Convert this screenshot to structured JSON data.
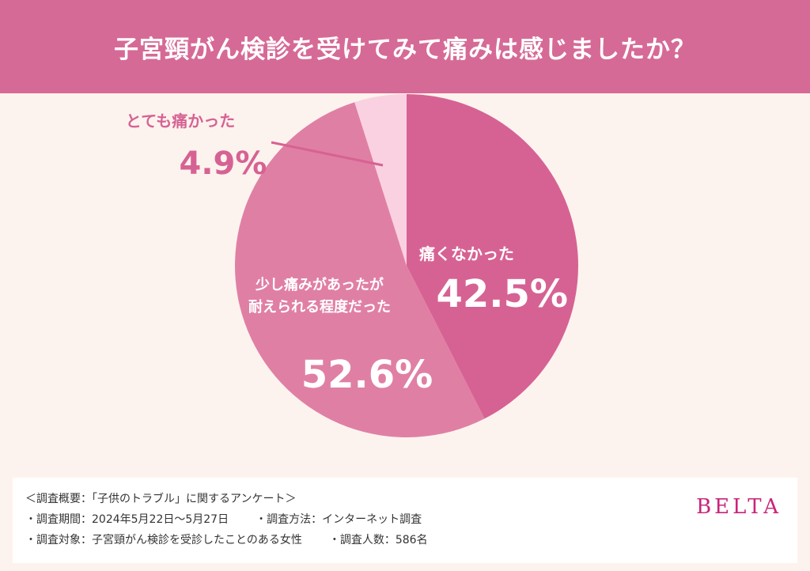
{
  "title": "子宮頸がん検診を受けてみて痛みは感じましたか？",
  "chart_data": {
    "type": "pie",
    "start_angle": 0,
    "direction": "clockwise",
    "slices": [
      {
        "lines": [
          "痛くなかった"
        ],
        "value": 42.5,
        "value_label": "42.5%",
        "color": "#d66293"
      },
      {
        "lines": [
          "少し痛みがあったが",
          "耐えられる程度だった"
        ],
        "value": 52.6,
        "value_label": "52.6%",
        "color": "#e07fa4"
      },
      {
        "lines": [
          "とても痛かった"
        ],
        "value": 4.9,
        "value_label": "4.9%",
        "color": "#fad1e1"
      }
    ]
  },
  "survey": {
    "heading": "＜調査概要：「子供のトラブル」に関するアンケート＞",
    "period": "・調査期間：2024年5月22日〜5月27日",
    "method": "・調査方法：インターネット調査",
    "target": "・調査対象：子宮頸がん検診を受診したことのある女性",
    "count": "・調査人数：586名"
  },
  "brand": "BELTA"
}
